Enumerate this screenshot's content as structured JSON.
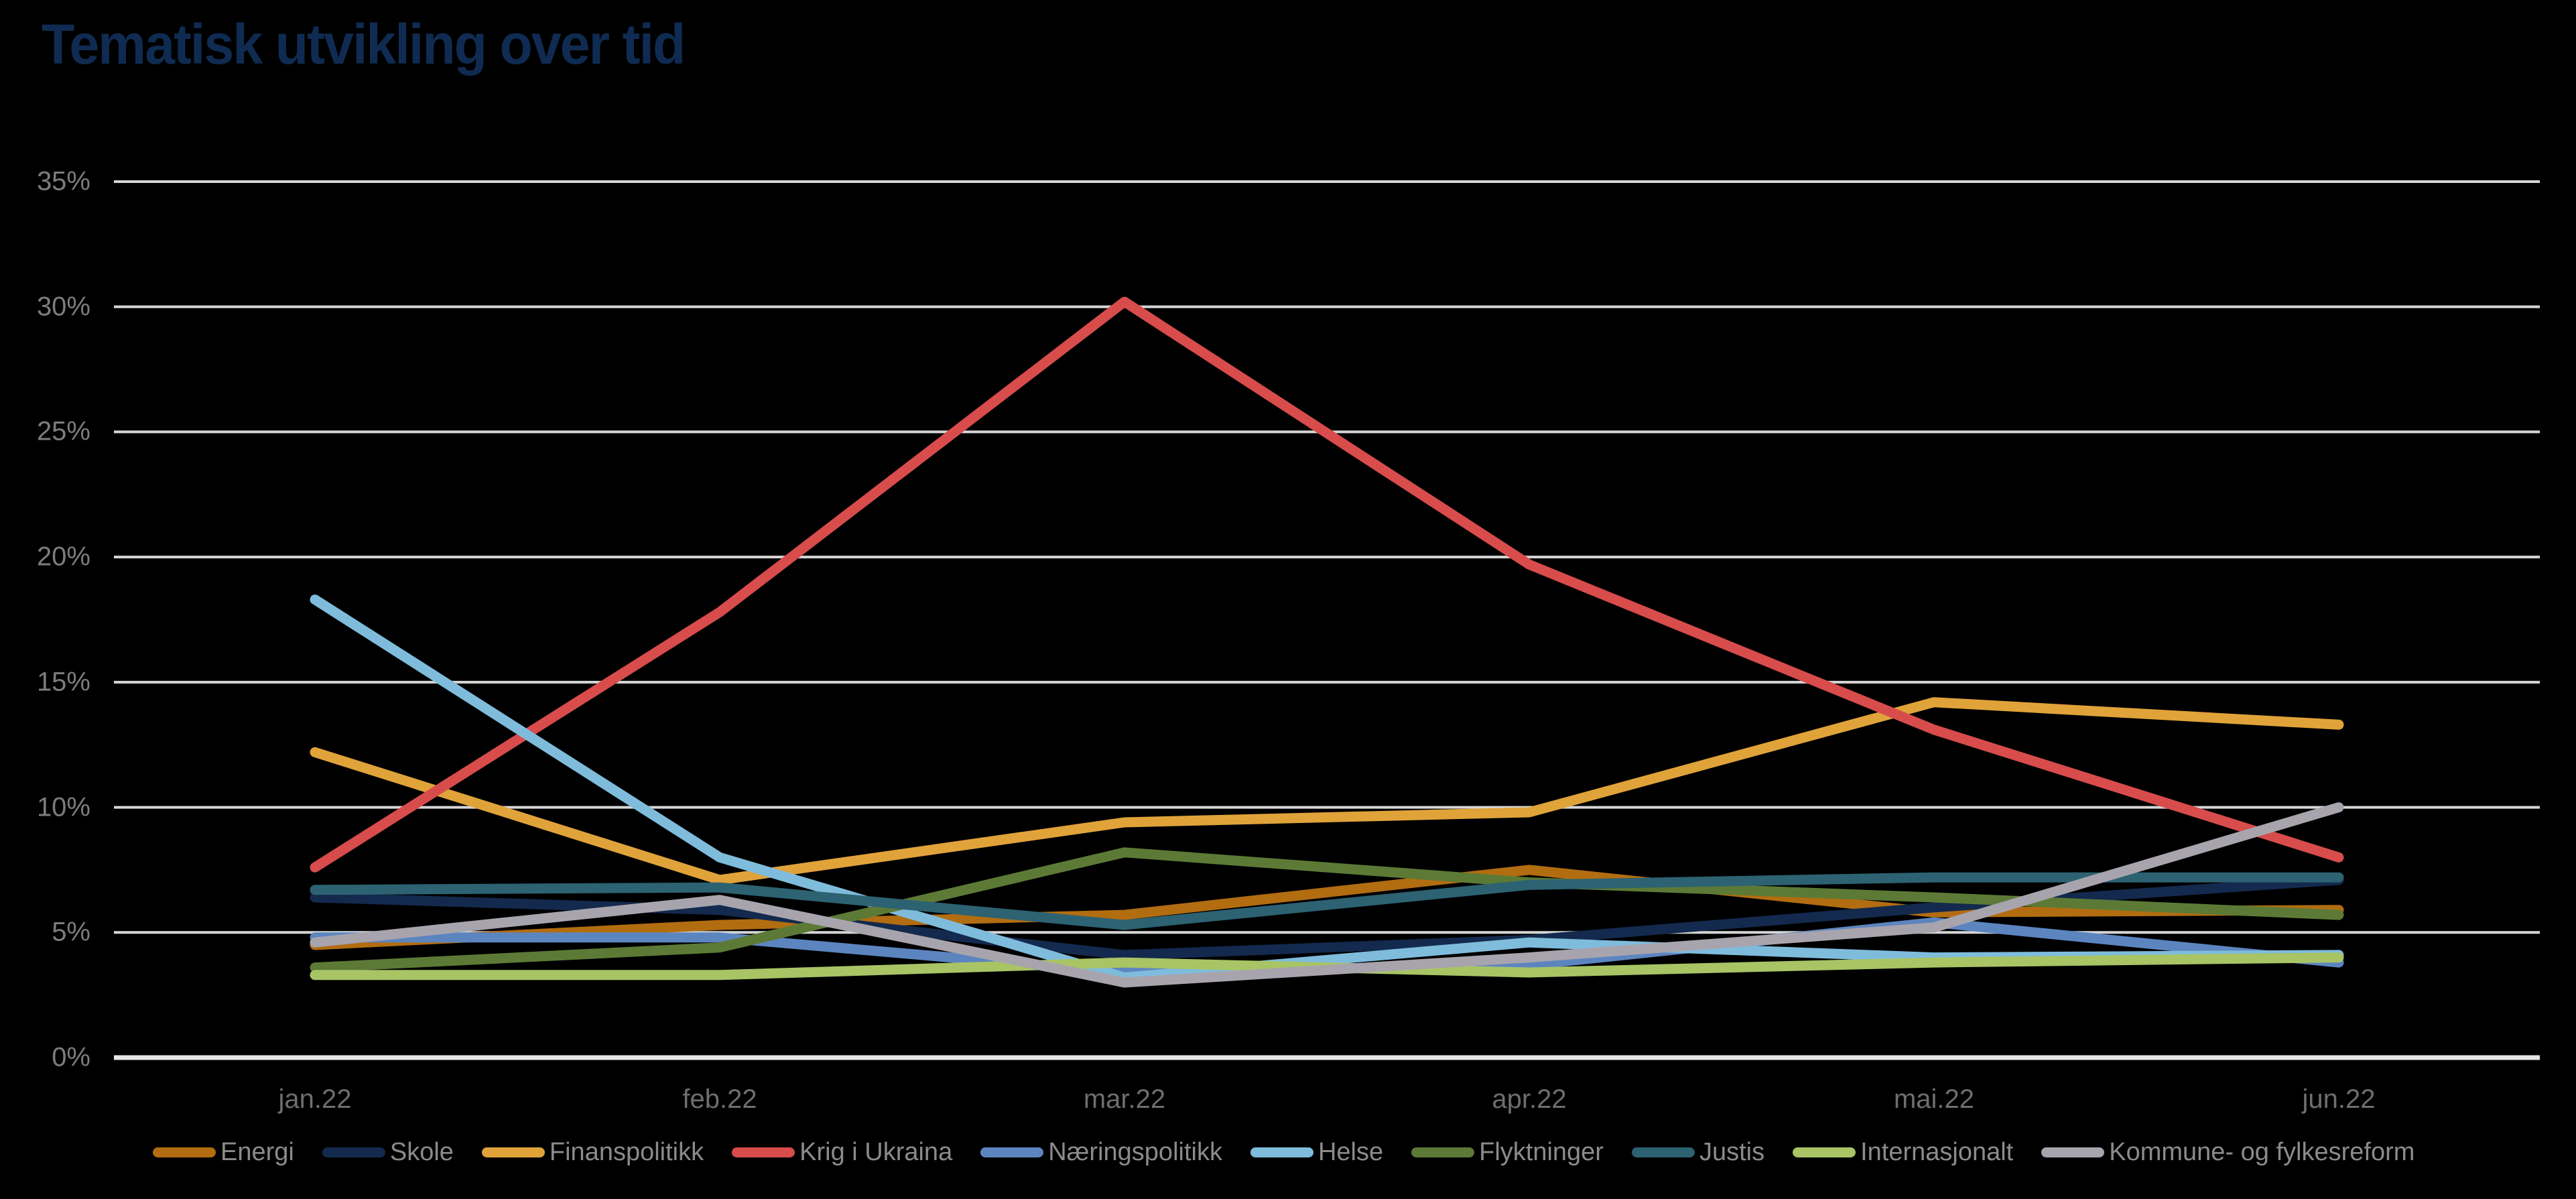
{
  "chart_data": {
    "type": "line",
    "title": "Tematisk utvikling over tid",
    "categories": [
      "jan.22",
      "feb.22",
      "mar.22",
      "apr.22",
      "mai.22",
      "jun.22"
    ],
    "y_ticks": [
      "0%",
      "5%",
      "10%",
      "15%",
      "20%",
      "25%",
      "30%",
      "35%"
    ],
    "ylim": [
      0,
      35
    ],
    "grid": "horizontal-only",
    "legend_position": "bottom",
    "background_color": "#000000",
    "title_color": "#102b52",
    "series": [
      {
        "name": "Energi",
        "color": "#b26d11",
        "values": [
          4.5,
          5.3,
          5.7,
          7.5,
          5.8,
          5.9
        ]
      },
      {
        "name": "Skole",
        "color": "#132a4e",
        "values": [
          6.4,
          5.9,
          4.1,
          4.7,
          6.0,
          7.1
        ]
      },
      {
        "name": "Finanspolitikk",
        "color": "#e0a33a",
        "values": [
          12.2,
          7.1,
          9.4,
          9.8,
          14.2,
          13.3
        ]
      },
      {
        "name": "Krig i Ukraina",
        "color": "#d84c4c",
        "values": [
          7.6,
          17.8,
          30.2,
          19.7,
          13.1,
          8.0
        ]
      },
      {
        "name": "Næringspolitikk",
        "color": "#5c85c0",
        "values": [
          4.8,
          4.8,
          3.4,
          3.7,
          5.4,
          3.8
        ]
      },
      {
        "name": "Helse",
        "color": "#7fbcdc",
        "values": [
          18.3,
          8.0,
          3.2,
          4.6,
          4.0,
          4.1
        ]
      },
      {
        "name": "Flyktninger",
        "color": "#5c7a36",
        "values": [
          3.6,
          4.4,
          8.2,
          7.0,
          6.4,
          5.7
        ]
      },
      {
        "name": "Justis",
        "color": "#2d6272",
        "values": [
          6.7,
          6.8,
          5.3,
          6.9,
          7.2,
          7.2
        ]
      },
      {
        "name": "Internasjonalt",
        "color": "#a8c465",
        "values": [
          3.3,
          3.3,
          3.8,
          3.4,
          3.8,
          4.0
        ]
      },
      {
        "name": "Kommune- og fylkesreform",
        "color": "#a8a4ad",
        "values": [
          4.6,
          6.3,
          3.0,
          4.0,
          5.2,
          10.0
        ]
      }
    ]
  }
}
